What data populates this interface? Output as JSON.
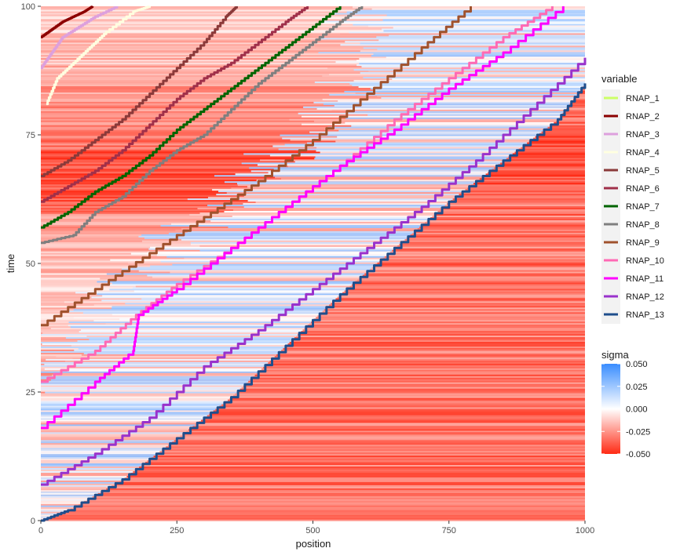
{
  "chart_data": {
    "type": "line",
    "xlabel": "position",
    "ylabel": "time",
    "xlim": [
      0,
      1000
    ],
    "ylim": [
      0,
      100
    ],
    "x_ticks": [
      0,
      250,
      500,
      750,
      1000
    ],
    "y_ticks": [
      0,
      25,
      50,
      75,
      100
    ],
    "x_tick_labels": [
      "0",
      "250",
      "500",
      "750",
      "1000"
    ],
    "y_tick_labels": [
      "0",
      "25",
      "50",
      "75",
      "100"
    ],
    "background": {
      "type": "heatmap",
      "variable": "sigma",
      "description_values": "horizontal bands of supercoiling density sigma across time, ranging from -0.05 to 0.05"
    },
    "legend_title": "variable",
    "legend_placement": "right",
    "colorbar": {
      "title": "sigma",
      "ticks": [
        0.05,
        0.025,
        0.0,
        -0.025,
        -0.05
      ],
      "tick_labels": [
        "0.050",
        "0.025",
        "0.000",
        "-0.025",
        "-0.050"
      ],
      "colors": [
        "#3a8dff",
        "#ffffff",
        "#ff2a14"
      ]
    },
    "series": [
      {
        "name": "RNAP_1",
        "color": "#ccff66",
        "x": [],
        "y": []
      },
      {
        "name": "RNAP_2",
        "color": "#8b0000",
        "x": [
          0,
          20,
          40,
          60,
          80,
          95
        ],
        "y": [
          94,
          95.5,
          97,
          98,
          99,
          100
        ]
      },
      {
        "name": "RNAP_3",
        "color": "#dda0dd",
        "x": [
          0,
          20,
          40,
          70,
          100,
          140
        ],
        "y": [
          88,
          91,
          94,
          96,
          98,
          100
        ]
      },
      {
        "name": "RNAP_4",
        "color": "#ffffe0",
        "x": [
          10,
          30,
          60,
          90,
          120,
          170,
          200
        ],
        "y": [
          81,
          86,
          89,
          92,
          95,
          99,
          100
        ]
      },
      {
        "name": "RNAP_5",
        "color": "#8b3a3a",
        "x": [
          0,
          50,
          100,
          150,
          200,
          250,
          300,
          340,
          360
        ],
        "y": [
          67,
          70,
          74,
          78,
          83,
          88,
          93,
          98,
          100
        ]
      },
      {
        "name": "RNAP_6",
        "color": "#a0304a",
        "x": [
          0,
          50,
          100,
          150,
          200,
          250,
          300,
          350,
          400,
          450,
          490
        ],
        "y": [
          62,
          65,
          68,
          72,
          77,
          82,
          86,
          89,
          93,
          97,
          100
        ]
      },
      {
        "name": "RNAP_7",
        "color": "#006400",
        "x": [
          0,
          50,
          100,
          150,
          200,
          250,
          300,
          350,
          400,
          450,
          500,
          550
        ],
        "y": [
          57,
          60,
          64,
          67,
          71,
          76,
          80,
          84,
          88,
          92,
          96,
          100
        ]
      },
      {
        "name": "RNAP_8",
        "color": "#7f7f7f",
        "x": [
          0,
          60,
          100,
          150,
          200,
          250,
          300,
          350,
          400,
          450,
          500,
          550,
          590
        ],
        "y": [
          54,
          55.5,
          60,
          63,
          68,
          72,
          75,
          80,
          85,
          89,
          93,
          97,
          100
        ]
      },
      {
        "name": "RNAP_9",
        "color": "#a0522d",
        "x": [
          0,
          100,
          200,
          300,
          400,
          500,
          600,
          700,
          790
        ],
        "y": [
          38,
          45,
          52,
          59,
          66,
          74,
          83,
          92,
          100
        ]
      },
      {
        "name": "RNAP_10",
        "color": "#ff69b4",
        "x": [
          0,
          100,
          175,
          250,
          350,
          450,
          550,
          650,
          750,
          850,
          940
        ],
        "y": [
          27,
          33,
          40,
          46,
          53,
          61,
          69,
          78,
          86,
          94,
          100
        ]
      },
      {
        "name": "RNAP_11",
        "color": "#ff00ff",
        "x": [
          0,
          100,
          170,
          180,
          250,
          350,
          450,
          550,
          650,
          750,
          850,
          960
        ],
        "y": [
          18,
          27,
          33,
          40,
          45,
          53,
          61,
          69,
          76,
          84,
          91,
          100
        ]
      },
      {
        "name": "RNAP_12",
        "color": "#9932cc",
        "x": [
          0,
          100,
          200,
          300,
          400,
          500,
          600,
          700,
          800,
          900,
          1000
        ],
        "y": [
          7,
          13,
          20,
          30,
          37,
          45,
          53,
          61,
          70,
          80,
          90
        ]
      },
      {
        "name": "RNAP_13",
        "color": "#1f4e8c",
        "x": [
          0,
          50,
          150,
          250,
          350,
          450,
          550,
          650,
          750,
          850,
          950,
          1000
        ],
        "y": [
          0,
          2,
          8,
          16,
          24,
          34,
          44,
          53,
          62,
          70,
          78,
          85
        ]
      }
    ]
  }
}
